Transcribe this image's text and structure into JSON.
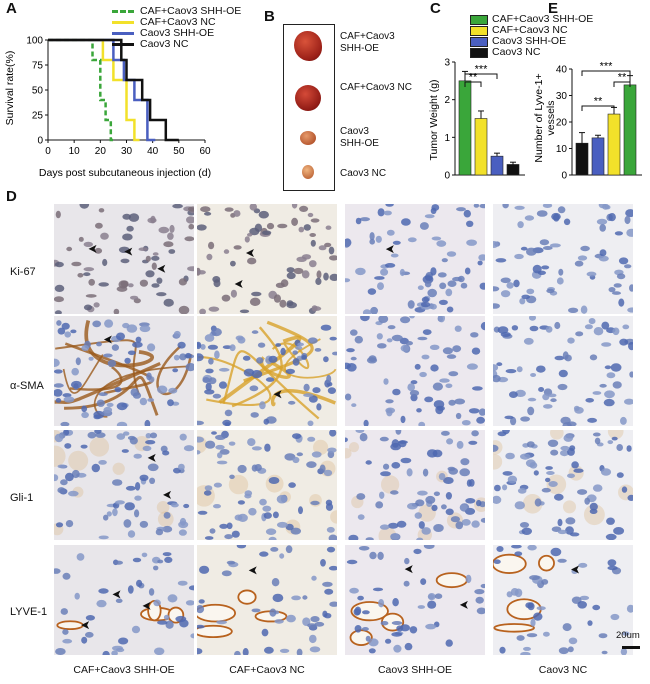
{
  "panels": {
    "A": {
      "letter": "A",
      "ylabel": "Survival rate(%)",
      "xlabel": "Days post subcutaneous injection (d)",
      "xticks": [
        "0",
        "10",
        "20",
        "30",
        "40",
        "50",
        "60"
      ],
      "yticks": [
        "0",
        "25",
        "50",
        "75",
        "100"
      ]
    },
    "B": {
      "letter": "B",
      "labels": [
        "CAF+Caov3\nSHH-OE",
        "CAF+Caov3 NC",
        "Caov3\nSHH-OE",
        "Caov3 NC"
      ]
    },
    "C": {
      "letter": "C",
      "ylabel": "Tumor Weight (g)",
      "yticks": [
        "0",
        "1",
        "2",
        "3"
      ],
      "sig": [
        "**",
        "***"
      ]
    },
    "E": {
      "letter": "E",
      "ylabel": "Number of Lyve-1+\nvessels",
      "yticks": [
        "0",
        "10",
        "20",
        "30",
        "40"
      ],
      "sig": [
        "**",
        "***",
        "**"
      ]
    },
    "D": {
      "letter": "D",
      "rows": [
        "Ki-67",
        "α-SMA",
        "Gli-1",
        "LYVE-1"
      ],
      "columns": [
        "CAF+Caov3 SHH-OE",
        "CAF+Caov3 NC",
        "Caov3 SHH-OE",
        "Caov3 NC"
      ],
      "scalebar": "20um"
    }
  },
  "legend": {
    "entries": [
      "CAF+Caov3 SHH-OE",
      "CAF+Caov3 NC",
      "Caov3 SHH-OE",
      "Caov3 NC"
    ],
    "colors": [
      "#3aa63a",
      "#f2e12a",
      "#4a5fc0",
      "#111111"
    ]
  },
  "chart_data": [
    {
      "type": "line",
      "title": "",
      "xlabel": "Days post subcutaneous injection (d)",
      "ylabel": "Survival rate(%)",
      "xlim": [
        0,
        60
      ],
      "ylim": [
        0,
        100
      ],
      "step": true,
      "series": [
        {
          "name": "CAF+Caov3 SHH-OE",
          "color": "#3aa63a",
          "dashed": true,
          "x": [
            0,
            17,
            17,
            20,
            20,
            22,
            22,
            24,
            24,
            26
          ],
          "y": [
            100,
            100,
            80,
            80,
            40,
            40,
            20,
            20,
            0,
            0
          ]
        },
        {
          "name": "CAF+Caov3 NC",
          "color": "#f2e12a",
          "dashed": false,
          "x": [
            0,
            21,
            21,
            25,
            25,
            30,
            30,
            33,
            33,
            35
          ],
          "y": [
            100,
            100,
            80,
            80,
            60,
            60,
            20,
            20,
            0,
            0
          ]
        },
        {
          "name": "Caov3 SHH-OE",
          "color": "#4a5fc0",
          "dashed": false,
          "x": [
            0,
            25,
            25,
            29,
            29,
            33,
            33,
            38,
            38,
            41
          ],
          "y": [
            100,
            100,
            80,
            80,
            60,
            60,
            40,
            40,
            0,
            0
          ]
        },
        {
          "name": "Caov3 NC",
          "color": "#111111",
          "dashed": false,
          "x": [
            0,
            28,
            28,
            30,
            30,
            36,
            36,
            39,
            39,
            45,
            45,
            50,
            50
          ],
          "y": [
            100,
            100,
            80,
            80,
            60,
            60,
            40,
            40,
            20,
            20,
            0,
            0,
            0
          ]
        }
      ]
    },
    {
      "type": "bar",
      "title": "",
      "ylabel": "Tumor Weight (g)",
      "ylim": [
        0,
        3
      ],
      "categories": [
        "CAF+Caov3 SHH-OE",
        "CAF+Caov3 NC",
        "Caov3 SHH-OE",
        "Caov3 NC"
      ],
      "values": [
        2.5,
        1.5,
        0.5,
        0.28
      ],
      "errors": [
        0.25,
        0.2,
        0.08,
        0.06
      ],
      "colors": [
        "#3aa63a",
        "#f2e12a",
        "#4a5fc0",
        "#111111"
      ]
    },
    {
      "type": "bar",
      "title": "",
      "ylabel": "Number of Lyve-1+ vessels",
      "ylim": [
        0,
        40
      ],
      "categories": [
        "Caov3 NC",
        "Caov3 SHH-OE",
        "CAF+Caov3 NC",
        "CAF+Caov3 SHH-OE"
      ],
      "values": [
        12,
        14,
        23,
        34
      ],
      "errors": [
        4,
        1,
        2.5,
        3.5
      ],
      "colors": [
        "#111111",
        "#4a5fc0",
        "#f2e12a",
        "#3aa63a"
      ]
    }
  ]
}
